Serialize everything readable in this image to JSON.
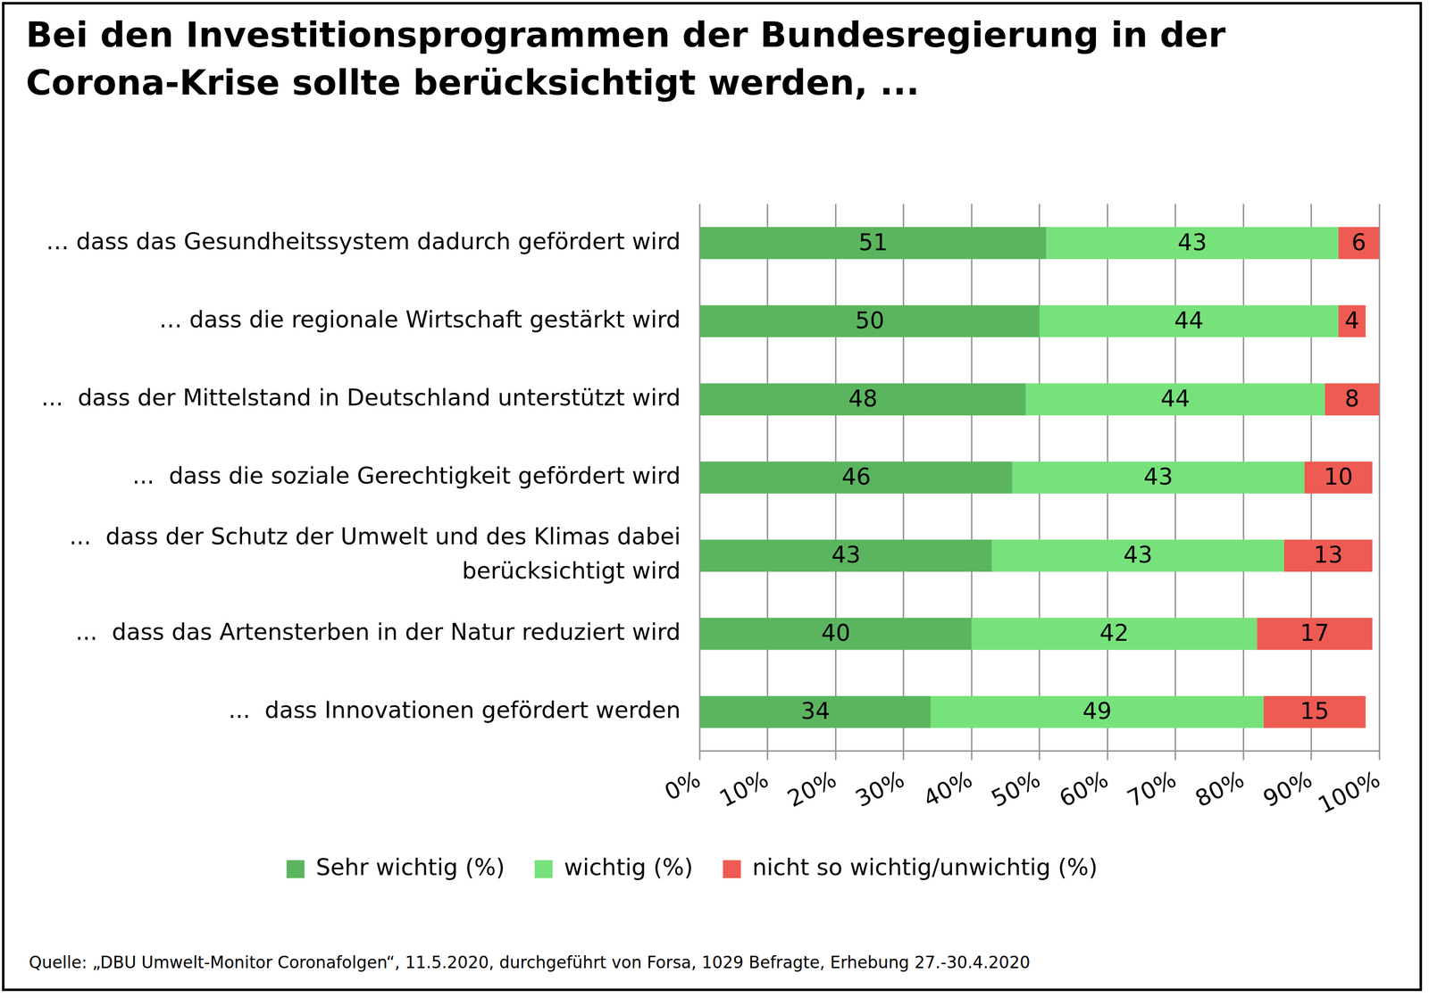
{
  "chart_data": {
    "type": "bar",
    "orientation": "horizontal",
    "stacked": true,
    "data_labels": true,
    "grid": true,
    "legend": "bottom",
    "title": "Bei den Investitionsprogrammen der Bundesregierung in der Corona-Krise sollte berücksichtigt werden, ...",
    "source": "Quelle: „DBU Umwelt-Monitor Coronafolgen“, 11.5.2020, durchgeführt von Forsa, 1029 Befragte, Erhebung 27.-30.4.2020",
    "categories": [
      "… dass das Gesundheitssystem dadurch gefördert wird",
      "… dass die regionale Wirtschaft gestärkt wird",
      "...  dass der Mittelstand in Deutschland unterstützt wird",
      "...  dass die soziale Gerechtigkeit gefördert wird",
      "...  dass der Schutz der Umwelt und des Klimas dabei\nberücksichtigt wird",
      "...  dass das Artensterben in der Natur reduziert wird",
      "...  dass Innovationen gefördert werden"
    ],
    "series": [
      {
        "name": "Sehr wichtig (%)",
        "color": "#5bb55f",
        "values": [
          51,
          50,
          48,
          46,
          43,
          40,
          34
        ]
      },
      {
        "name": "wichtig (%)",
        "color": "#77e27b",
        "values": [
          43,
          44,
          44,
          43,
          43,
          42,
          49
        ]
      },
      {
        "name": "nicht so wichtig/unwichtig (%)",
        "color": "#ee5b52",
        "values": [
          6,
          4,
          8,
          10,
          13,
          17,
          15
        ]
      }
    ],
    "xlim": [
      0,
      100
    ],
    "xticks": [
      {
        "value": 0,
        "label": "0%"
      },
      {
        "value": 10,
        "label": "10%"
      },
      {
        "value": 20,
        "label": "20%"
      },
      {
        "value": 30,
        "label": "30%"
      },
      {
        "value": 40,
        "label": "40%"
      },
      {
        "value": 50,
        "label": "50%"
      },
      {
        "value": 60,
        "label": "60%"
      },
      {
        "value": 70,
        "label": "70%"
      },
      {
        "value": 80,
        "label": "80%"
      },
      {
        "value": 90,
        "label": "90%"
      },
      {
        "value": 100,
        "label": "100%"
      }
    ]
  }
}
